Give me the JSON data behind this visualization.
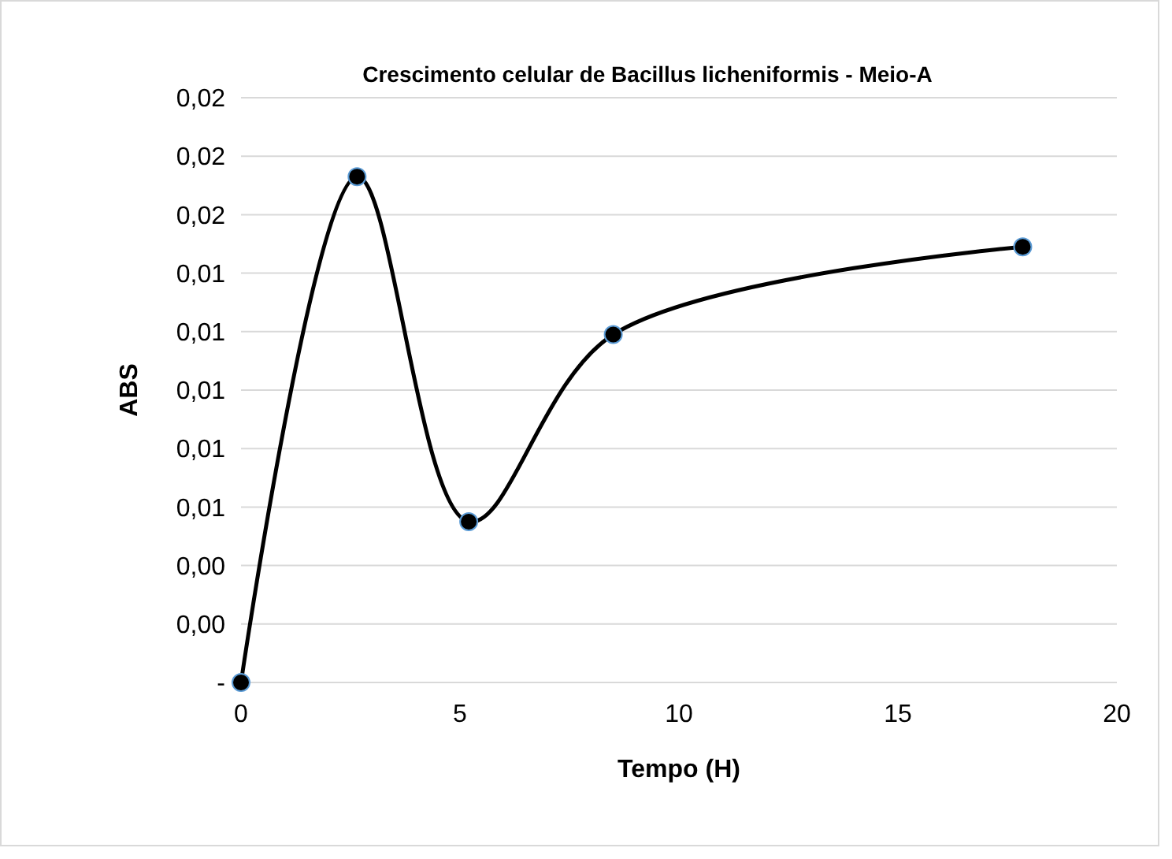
{
  "chart_data": {
    "type": "line",
    "title": "Crescimento celular de Bacillus licheniformis - Meio-A",
    "xlabel": "Tempo (H)",
    "ylabel": "ABS",
    "x": [
      0,
      2.65,
      5.2,
      8.5,
      17.85
    ],
    "series": [
      {
        "color": "#000000",
        "values": [
          0,
          0.0173,
          0.0055,
          0.0119,
          0.0149
        ]
      }
    ],
    "xlim": [
      0,
      20
    ],
    "xticks": [
      0,
      5,
      10,
      15,
      20
    ],
    "ylim": [
      0,
      0.02
    ],
    "yticks": [
      {
        "value": 0,
        "label": "-"
      },
      {
        "value": 0.002,
        "label": "0,00"
      },
      {
        "value": 0.004,
        "label": "0,00"
      },
      {
        "value": 0.006,
        "label": "0,01"
      },
      {
        "value": 0.008,
        "label": "0,01"
      },
      {
        "value": 0.01,
        "label": "0,01"
      },
      {
        "value": 0.012,
        "label": "0,01"
      },
      {
        "value": 0.014,
        "label": "0,01"
      },
      {
        "value": 0.016,
        "label": "0,02"
      },
      {
        "value": 0.018,
        "label": "0,02"
      },
      {
        "value": 0.02,
        "label": "0,02"
      }
    ],
    "grid": "y",
    "marker": "circle",
    "line_style": "solid"
  }
}
